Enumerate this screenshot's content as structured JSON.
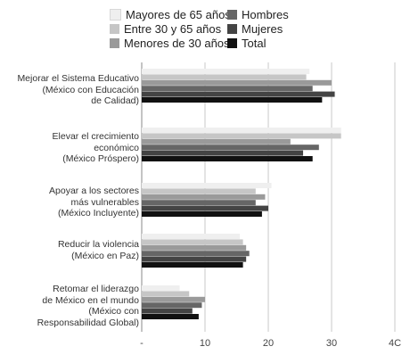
{
  "colors": {
    "Mayores de 65 años": "#efefef",
    "Entre 30 y 65 años": "#c6c6c6",
    "Menores de 30 años": "#9a9a9a",
    "Hombres": "#666666",
    "Mujeres": "#444444",
    "Total": "#111111",
    "axis": "#888888"
  },
  "chart_data": {
    "type": "bar",
    "orientation": "horizontal",
    "title": "",
    "xlabel": "",
    "ylabel": "",
    "xlim": [
      0,
      40
    ],
    "x_ticks": [
      "-",
      "10",
      "20",
      "30",
      "4C"
    ],
    "grid": false,
    "legend_position": "top",
    "categories": [
      {
        "label": [
          "Mejorar el Sistema Educativo",
          "(México con Educación",
          "de Calidad)"
        ]
      },
      {
        "label": [
          "Elevar el crecimiento",
          "económico",
          "(México Próspero)"
        ]
      },
      {
        "label": [
          "Apoyar a los sectores",
          "más vulnerables",
          "(México Incluyente)"
        ]
      },
      {
        "label": [
          "Reducir la violencia",
          "(México en Paz)"
        ]
      },
      {
        "label": [
          "Retomar el liderazgo",
          "de México en el mundo",
          "(México con",
          "Responsabilidad Global)"
        ]
      }
    ],
    "series": [
      {
        "name": "Mayores de 65 años",
        "values": [
          26.5,
          31.5,
          20.5,
          15.5,
          6
        ]
      },
      {
        "name": "Entre 30 y 65 años",
        "values": [
          26,
          31.5,
          18,
          16,
          7.5
        ]
      },
      {
        "name": "Menores de 30 años",
        "values": [
          30,
          23.5,
          19.5,
          16.5,
          10
        ]
      },
      {
        "name": "Hombres",
        "values": [
          27,
          28,
          18,
          17,
          9.5
        ]
      },
      {
        "name": "Mujeres",
        "values": [
          30.5,
          25.5,
          20,
          16.5,
          8
        ]
      },
      {
        "name": "Total",
        "values": [
          28.5,
          27,
          19,
          16,
          9
        ]
      }
    ]
  },
  "legend": {
    "items": [
      {
        "label": "Mayores de 65 años",
        "col": 0,
        "row": 0
      },
      {
        "label": "Entre 30 y 65 años",
        "col": 0,
        "row": 1
      },
      {
        "label": "Menores de 30 años",
        "col": 0,
        "row": 2
      },
      {
        "label": "Hombres",
        "col": 1,
        "row": 0
      },
      {
        "label": "Mujeres",
        "col": 1,
        "row": 1
      },
      {
        "label": "Total",
        "col": 1,
        "row": 2
      }
    ]
  }
}
